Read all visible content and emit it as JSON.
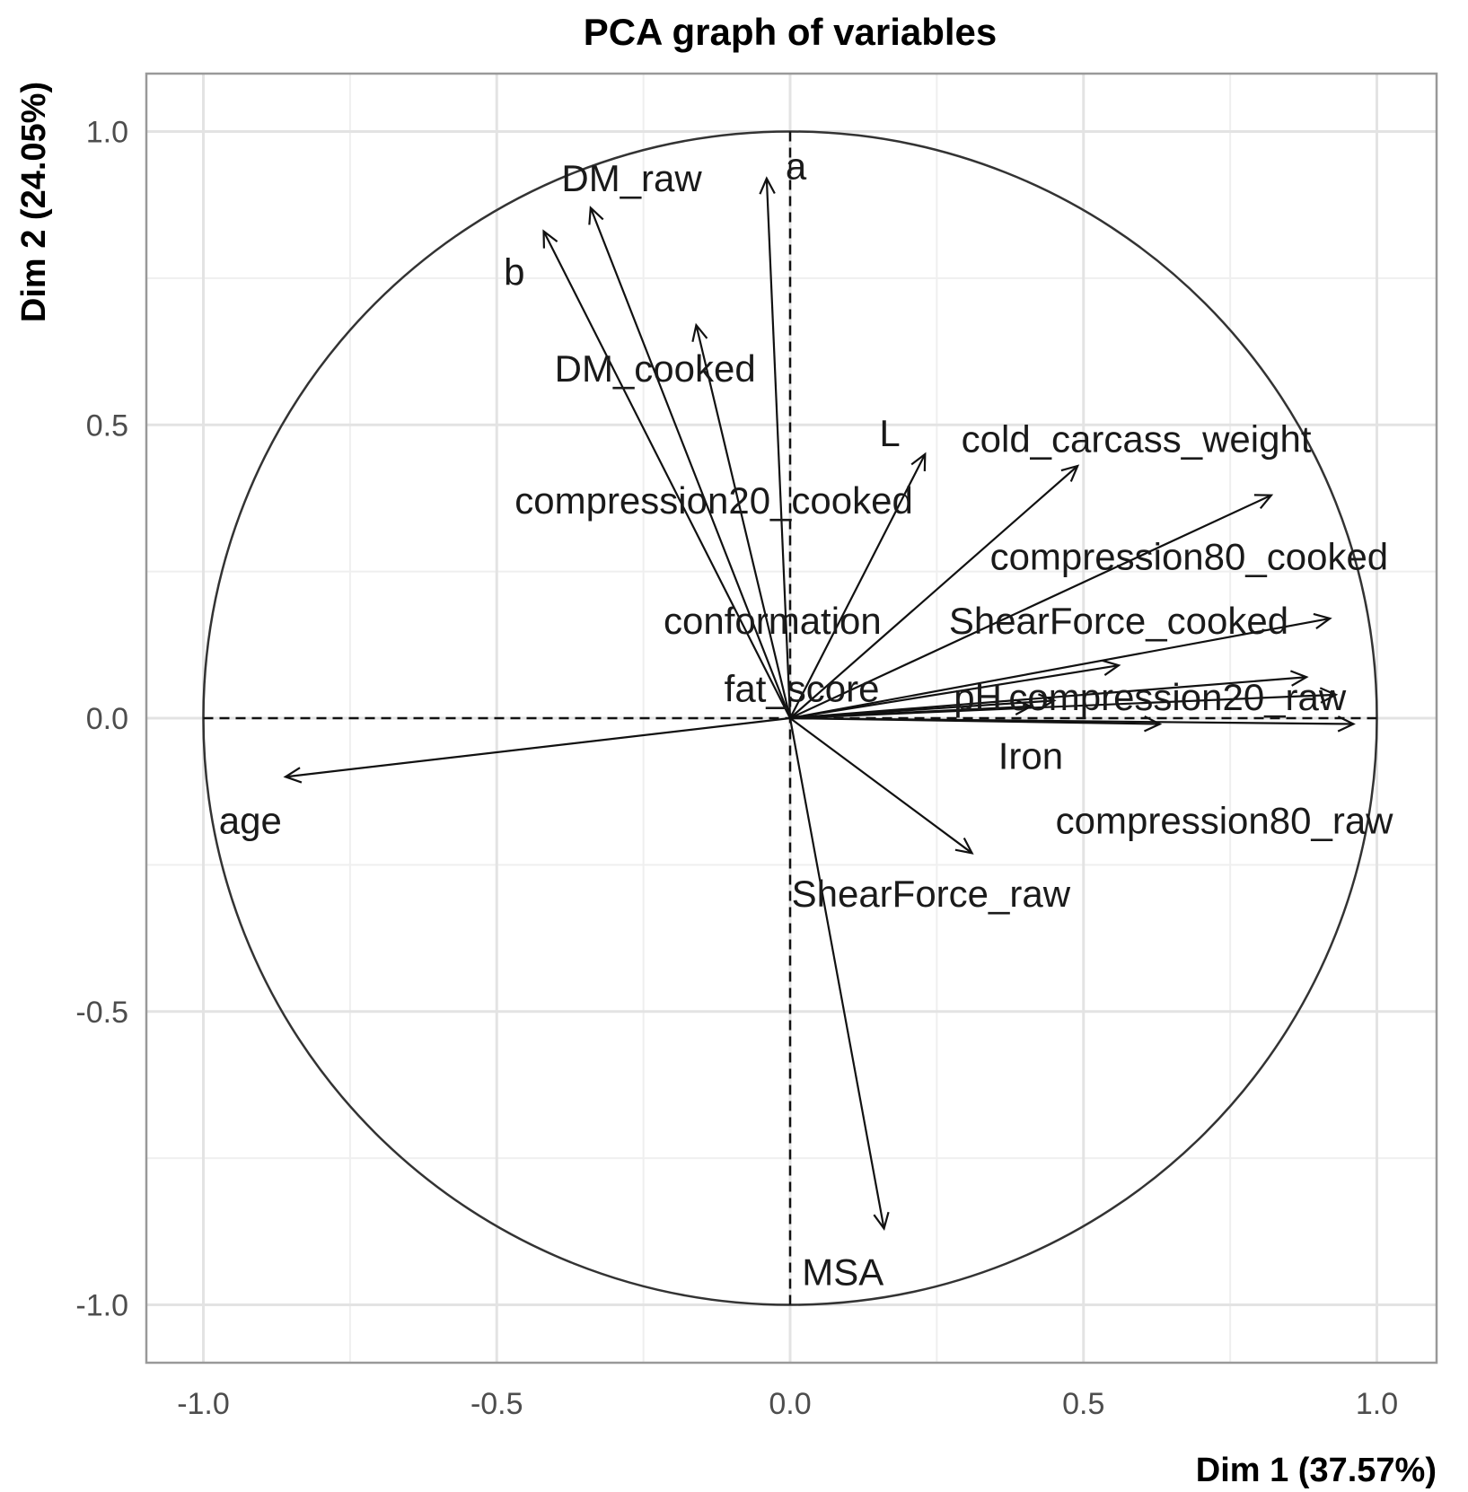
{
  "chart_data": {
    "type": "scatter",
    "subtype": "pca-correlation-circle",
    "title": "PCA graph of variables",
    "xlabel": "Dim 1 (37.57%)",
    "ylabel": "Dim 2 (24.05%)",
    "xlim": [
      -1.1,
      1.1
    ],
    "ylim": [
      -1.1,
      1.1
    ],
    "xticks": [
      -1.0,
      -0.5,
      0.0,
      0.5,
      1.0
    ],
    "yticks": [
      -1.0,
      -0.5,
      0.0,
      0.5,
      1.0
    ],
    "xtick_labels": [
      "-1.0",
      "-0.5",
      "0.0",
      "0.5",
      "1.0"
    ],
    "ytick_labels": [
      "-1.0",
      "-0.5",
      "0.0",
      "0.5",
      "1.0"
    ],
    "grid": true,
    "unit_circle": true,
    "variables": [
      {
        "name": "a",
        "x": -0.04,
        "y": 0.92,
        "lx": 0.01,
        "ly": 0.94
      },
      {
        "name": "DM_raw",
        "x": -0.34,
        "y": 0.87,
        "lx": -0.27,
        "ly": 0.92
      },
      {
        "name": "b",
        "x": -0.42,
        "y": 0.83,
        "lx": -0.47,
        "ly": 0.76
      },
      {
        "name": "DM_cooked",
        "x": -0.16,
        "y": 0.67,
        "lx": -0.23,
        "ly": 0.595
      },
      {
        "name": "L",
        "x": 0.23,
        "y": 0.45,
        "lx": 0.17,
        "ly": 0.485
      },
      {
        "name": "cold_carcass_weight",
        "x": 0.49,
        "y": 0.43,
        "lx": 0.59,
        "ly": 0.475
      },
      {
        "name": "compression20_cooked",
        "x": 0.82,
        "y": 0.38,
        "lx": -0.13,
        "ly": 0.37
      },
      {
        "name": "compression80_cooked",
        "x": 0.92,
        "y": 0.17,
        "lx": 0.68,
        "ly": 0.275
      },
      {
        "name": "conformation",
        "x": 0.56,
        "y": 0.09,
        "lx": -0.03,
        "ly": 0.165
      },
      {
        "name": "ShearForce_cooked",
        "x": 0.88,
        "y": 0.07,
        "lx": 0.56,
        "ly": 0.165
      },
      {
        "name": "fat_score",
        "x": 0.41,
        "y": 0.02,
        "lx": 0.02,
        "ly": 0.05
      },
      {
        "name": "pH",
        "x": 0.45,
        "y": 0.03,
        "lx": 0.32,
        "ly": 0.035
      },
      {
        "name": "compression20_raw",
        "x": 0.93,
        "y": 0.04,
        "lx": 0.66,
        "ly": 0.035
      },
      {
        "name": "Iron",
        "x": 0.63,
        "y": -0.01,
        "lx": 0.41,
        "ly": -0.065
      },
      {
        "name": "compression80_raw",
        "x": 0.96,
        "y": -0.01,
        "lx": 0.74,
        "ly": -0.175
      },
      {
        "name": "ShearForce_raw",
        "x": 0.31,
        "y": -0.23,
        "lx": 0.24,
        "ly": -0.3
      },
      {
        "name": "age",
        "x": -0.86,
        "y": -0.1,
        "lx": -0.92,
        "ly": -0.175
      },
      {
        "name": "MSA",
        "x": 0.16,
        "y": -0.87,
        "lx": 0.09,
        "ly": -0.945
      }
    ]
  }
}
